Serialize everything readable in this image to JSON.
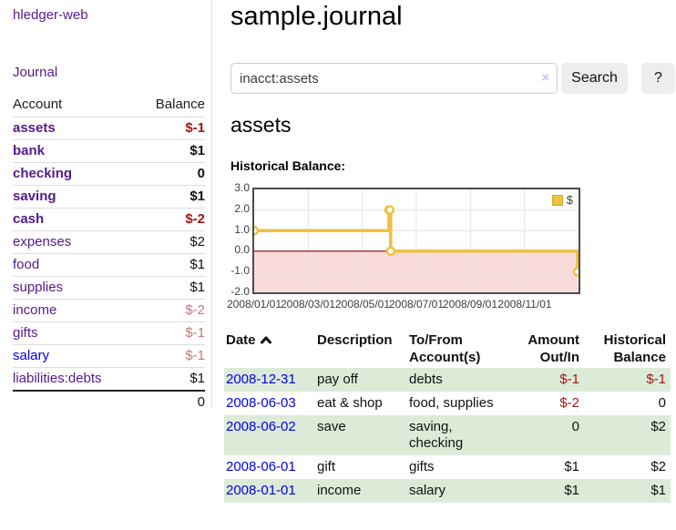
{
  "sidebar": {
    "brand": "hledger-web",
    "nav": {
      "journal": "Journal"
    },
    "accounts_table": {
      "headers": {
        "account": "Account",
        "balance": "Balance"
      },
      "rows": [
        {
          "name": "assets",
          "balance": "$-1"
        },
        {
          "name": "bank",
          "balance": "$1"
        },
        {
          "name": "checking",
          "balance": "0"
        },
        {
          "name": "saving",
          "balance": "$1"
        },
        {
          "name": "cash",
          "balance": "$-2"
        },
        {
          "name": "expenses",
          "balance": "$2"
        },
        {
          "name": "food",
          "balance": "$1"
        },
        {
          "name": "supplies",
          "balance": "$1"
        },
        {
          "name": "income",
          "balance": "$-2"
        },
        {
          "name": "gifts",
          "balance": "$-1"
        },
        {
          "name": "salary",
          "balance": "$-1"
        },
        {
          "name": "liabilities:debts",
          "balance": "$1"
        }
      ],
      "total": "0"
    }
  },
  "header": {
    "title": "sample.journal"
  },
  "search": {
    "value": "inacct:assets",
    "clear_icon": "×",
    "button_label": "Search",
    "help_label": "?"
  },
  "account_page": {
    "heading": "assets",
    "chart_title": "Historical Balance:"
  },
  "chart_data": {
    "type": "line",
    "style": "step",
    "title": "Historical Balance",
    "legend_label": "$",
    "legend_position": "top-right",
    "series": [
      {
        "name": "$",
        "color": "#edc240",
        "points": [
          [
            "2008-01-01",
            1
          ],
          [
            "2008-06-01",
            2
          ],
          [
            "2008-06-02",
            2
          ],
          [
            "2008-06-03",
            0
          ],
          [
            "2008-12-31",
            -1
          ]
        ]
      }
    ],
    "x_domain": [
      "2008-01-01",
      "2009-01-01"
    ],
    "ylim": [
      -2,
      3
    ],
    "y_ticks": [
      "3.0",
      "2.0",
      "1.0",
      "0.0",
      "-1.0",
      "-2.0"
    ],
    "x_ticks": [
      "2008/01/01",
      "2008/03/01",
      "2008/05/01",
      "2008/07/01",
      "2008/09/01",
      "2008/11/01"
    ],
    "grid": true,
    "zero_line_color": "#8b0000",
    "negative_region_color": "#fadcdc"
  },
  "register": {
    "headers": {
      "date": "Date",
      "description": "Description",
      "accounts_line1": "To/From",
      "accounts_line2": "Account(s)",
      "amount_line1": "Amount",
      "amount_line2": "Out/In",
      "balance_line1": "Historical",
      "balance_line2": "Balance"
    },
    "rows": [
      {
        "date": "2008-12-31",
        "description": "pay off",
        "accounts": "debts",
        "amount": "$-1",
        "balance": "$-1"
      },
      {
        "date": "2008-06-03",
        "description": "eat & shop",
        "accounts": "food, supplies",
        "amount": "$-2",
        "balance": "0"
      },
      {
        "date": "2008-06-02",
        "description": "save",
        "accounts": "saving,\nchecking",
        "amount": "0",
        "balance": "$2"
      },
      {
        "date": "2008-06-01",
        "description": "gift",
        "accounts": "gifts",
        "amount": "$1",
        "balance": "$2"
      },
      {
        "date": "2008-01-01",
        "description": "income",
        "accounts": "salary",
        "amount": "$1",
        "balance": "$1"
      }
    ]
  }
}
